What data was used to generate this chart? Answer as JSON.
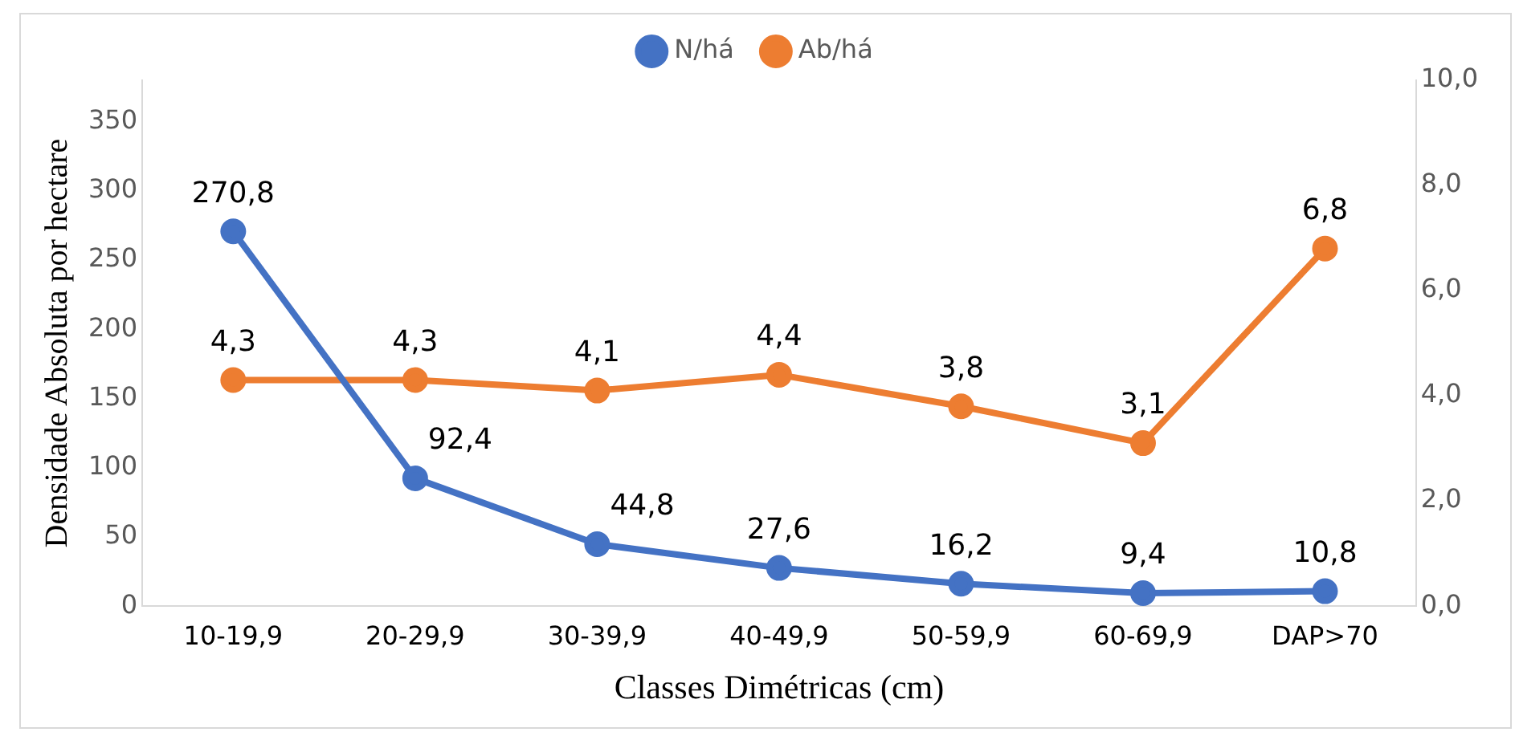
{
  "chart_data": {
    "type": "line",
    "xlabel": "Classes Dimétricas (cm)",
    "ylabel": "Densidade Absoluta por hectare",
    "categories": [
      "10-19,9",
      "20-29,9",
      "30-39,9",
      "40-49,9",
      "50-59,9",
      "60-69,9",
      "DAP>70"
    ],
    "series": [
      {
        "name": "N/há",
        "color": "#4472c4",
        "values": [
          270.8,
          92.4,
          44.8,
          27.6,
          16.2,
          9.4,
          10.8
        ],
        "value_labels": [
          "270,8",
          "92,4",
          "44,8",
          "27,6",
          "16,2",
          "9,4",
          "10,8"
        ]
      },
      {
        "name": "Ab/há",
        "color": "#ed7d31",
        "axis": "y2",
        "values": [
          4.3,
          4.3,
          4.1,
          4.4,
          3.8,
          3.1,
          6.8
        ],
        "value_labels": [
          "4,3",
          "4,3",
          "4,1",
          "4,4",
          "3,8",
          "3,1",
          "6,8"
        ]
      }
    ],
    "ylim": [
      0,
      380
    ],
    "yticks": [
      0,
      50,
      100,
      150,
      200,
      250,
      300,
      350
    ],
    "y2lim": [
      0,
      10
    ],
    "y2ticks": [
      {
        "value": 0,
        "label": "0,0"
      },
      {
        "value": 2,
        "label": "2,0"
      },
      {
        "value": 4,
        "label": "4,0"
      },
      {
        "value": 6,
        "label": "6,0"
      },
      {
        "value": 8,
        "label": "8,0"
      },
      {
        "value": 10,
        "label": "10,0"
      }
    ],
    "legend": "top",
    "marker": "circle",
    "grid": false
  }
}
